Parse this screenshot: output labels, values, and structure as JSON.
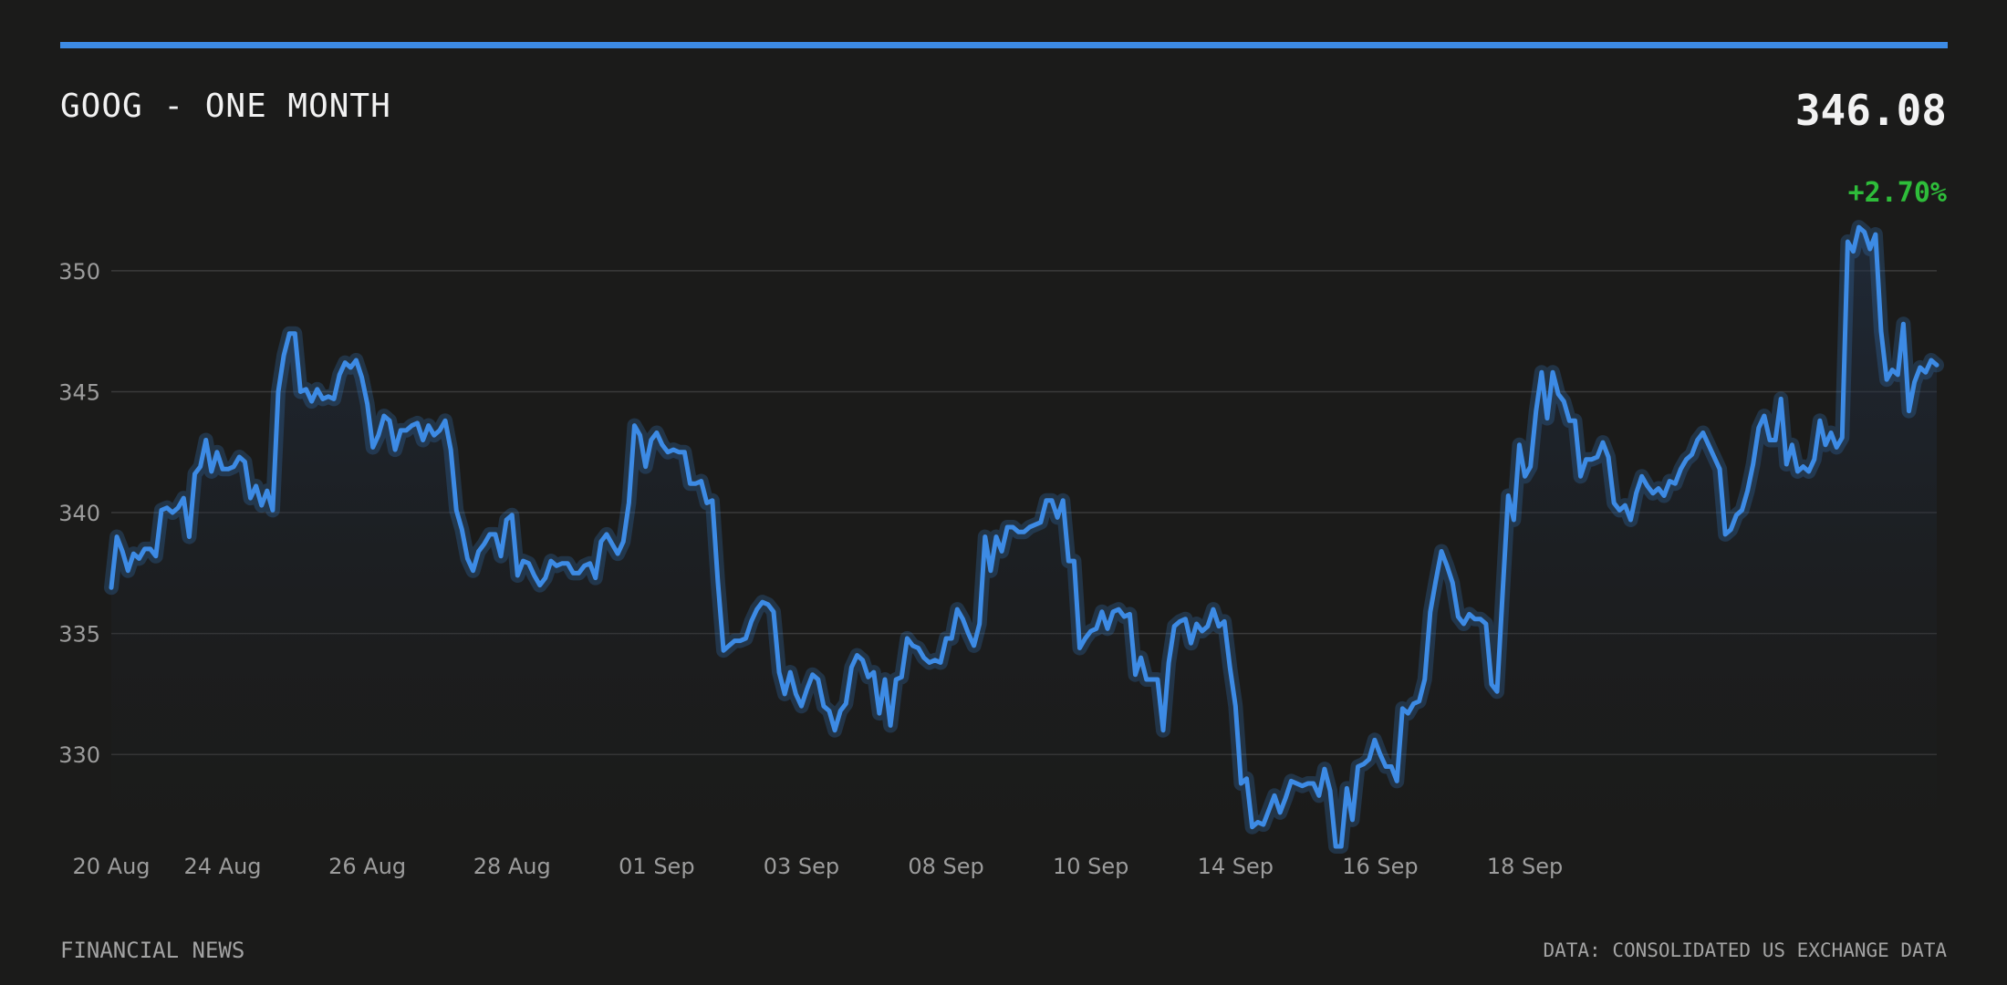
{
  "header": {
    "title": "GOOG - ONE MONTH",
    "price": "346.08",
    "change": "+2.70%"
  },
  "footer": {
    "source_left": "FINANCIAL NEWS",
    "source_right": "DATA: CONSOLIDATED US EXCHANGE DATA"
  },
  "colors": {
    "line": "#3d8be5",
    "positive": "#2ebd3a",
    "grid": "#3a3a3a"
  },
  "chart_data": {
    "type": "area",
    "title": "GOOG - ONE MONTH",
    "ylim": [
      326.2,
      353.2
    ],
    "yticks": [
      330,
      335,
      340,
      345,
      350
    ],
    "grid": true,
    "x_tick_labels": [
      {
        "label": "20 Aug",
        "index": 0
      },
      {
        "label": "24 Aug",
        "index": 20
      },
      {
        "label": "26 Aug",
        "index": 46
      },
      {
        "label": "28 Aug",
        "index": 72
      },
      {
        "label": "01 Sep",
        "index": 98
      },
      {
        "label": "03 Sep",
        "index": 124
      },
      {
        "label": "08 Sep",
        "index": 150
      },
      {
        "label": "10 Sep",
        "index": 176
      },
      {
        "label": "14 Sep",
        "index": 202
      },
      {
        "label": "16 Sep",
        "index": 228
      },
      {
        "label": "18 Sep",
        "index": 254
      }
    ],
    "values": [
      336.9,
      339.0,
      338.4,
      337.6,
      338.3,
      338.1,
      338.5,
      338.5,
      338.2,
      340.1,
      340.2,
      340.0,
      340.2,
      340.6,
      339.0,
      341.6,
      341.9,
      343.0,
      341.7,
      342.5,
      341.8,
      341.8,
      341.9,
      342.3,
      342.1,
      340.6,
      341.1,
      340.3,
      340.9,
      340.1,
      345.0,
      346.5,
      347.4,
      347.4,
      345.0,
      345.1,
      344.6,
      345.1,
      344.7,
      344.8,
      344.7,
      345.7,
      346.2,
      346.0,
      346.3,
      345.6,
      344.5,
      342.7,
      343.2,
      344.0,
      343.8,
      342.6,
      343.4,
      343.4,
      343.6,
      343.7,
      343.0,
      343.6,
      343.2,
      343.4,
      343.8,
      342.6,
      340.1,
      339.3,
      338.1,
      337.6,
      338.4,
      338.7,
      339.1,
      339.1,
      338.2,
      339.7,
      339.9,
      337.4,
      338.0,
      337.9,
      337.4,
      337.0,
      337.3,
      338.0,
      337.8,
      337.9,
      337.9,
      337.5,
      337.5,
      337.8,
      337.9,
      337.3,
      338.8,
      339.1,
      338.7,
      338.3,
      338.8,
      340.4,
      343.6,
      343.2,
      341.9,
      343.0,
      343.3,
      342.8,
      342.5,
      342.6,
      342.5,
      342.5,
      341.2,
      341.2,
      341.3,
      340.4,
      340.5,
      337.1,
      334.3,
      334.5,
      334.7,
      334.7,
      334.8,
      335.5,
      336.0,
      336.3,
      336.2,
      335.9,
      333.4,
      332.5,
      333.4,
      332.5,
      332.0,
      332.7,
      333.3,
      333.1,
      332.0,
      331.8,
      331.0,
      331.8,
      332.1,
      333.6,
      334.1,
      333.9,
      333.2,
      333.4,
      331.7,
      333.1,
      331.2,
      333.1,
      333.2,
      334.8,
      334.5,
      334.4,
      334.0,
      333.8,
      333.9,
      333.8,
      334.8,
      334.8,
      336.0,
      335.6,
      335.0,
      334.5,
      335.4,
      339.0,
      337.6,
      339.0,
      338.4,
      339.4,
      339.4,
      339.2,
      339.2,
      339.4,
      339.5,
      339.6,
      340.5,
      340.5,
      339.8,
      340.5,
      338.0,
      338.0,
      334.4,
      334.8,
      335.1,
      335.2,
      335.9,
      335.2,
      335.9,
      336.0,
      335.7,
      335.8,
      333.3,
      334.0,
      333.1,
      333.1,
      333.1,
      331.0,
      333.8,
      335.3,
      335.5,
      335.6,
      334.6,
      335.4,
      335.1,
      335.3,
      336.0,
      335.3,
      335.5,
      333.6,
      332.0,
      328.8,
      329.0,
      327.0,
      327.2,
      327.1,
      327.7,
      328.3,
      327.6,
      328.2,
      328.9,
      328.8,
      328.7,
      328.8,
      328.8,
      328.3,
      329.4,
      328.5,
      326.2,
      326.2,
      328.6,
      327.3,
      329.5,
      329.6,
      329.8,
      330.6,
      330.0,
      329.5,
      329.5,
      328.9,
      331.9,
      331.7,
      332.1,
      332.2,
      333.1,
      335.9,
      337.2,
      338.4,
      337.8,
      337.1,
      335.7,
      335.4,
      335.8,
      335.6,
      335.6,
      335.4,
      332.9,
      332.6,
      336.7,
      340.7,
      339.7,
      342.8,
      341.5,
      341.9,
      344.2,
      345.8,
      343.9,
      345.8,
      344.9,
      344.6,
      343.8,
      343.8,
      341.5,
      342.2,
      342.2,
      342.3,
      342.9,
      342.3,
      340.4,
      340.1,
      340.3,
      339.7,
      340.8,
      341.5,
      341.1,
      340.8,
      341.0,
      340.7,
      341.3,
      341.2,
      341.8,
      342.2,
      342.4,
      343.0,
      343.3,
      342.8,
      342.3,
      341.8,
      339.1,
      339.3,
      339.9,
      340.1,
      340.9,
      342.0,
      343.5,
      344.0,
      343.0,
      343.0,
      344.7,
      342.0,
      342.8,
      341.7,
      341.9,
      341.7,
      342.2,
      343.8,
      342.8,
      343.3,
      342.7,
      343.1,
      351.2,
      350.8,
      351.8,
      351.6,
      350.9,
      351.5,
      347.5,
      345.5,
      345.9,
      345.7,
      347.8,
      344.2,
      345.4,
      346.0,
      345.8,
      346.3,
      346.1
    ]
  }
}
